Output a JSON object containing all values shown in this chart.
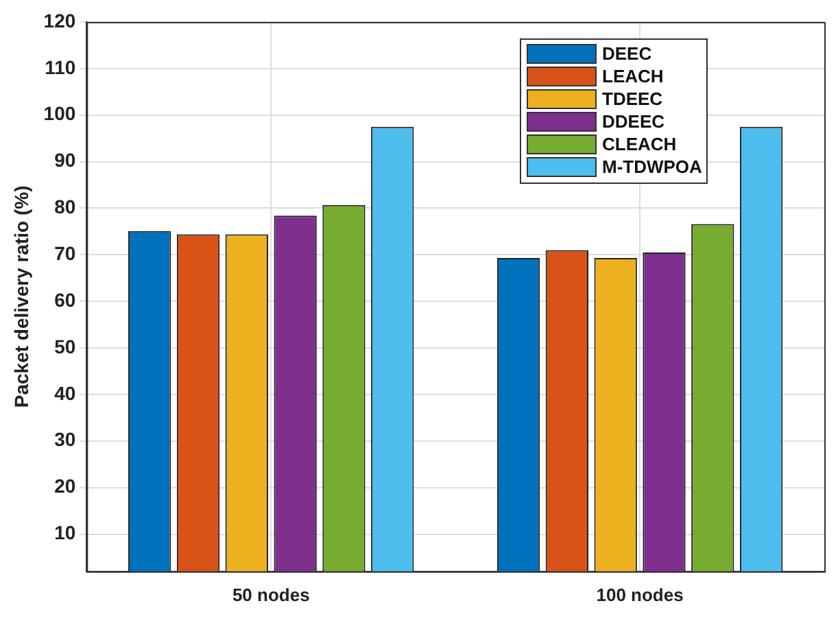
{
  "chart_data": {
    "type": "bar",
    "ylabel": "Packet delivery ratio (%)",
    "categories": [
      "50 nodes",
      "100 nodes"
    ],
    "series": [
      {
        "name": "DEEC",
        "color": "#0072bd",
        "values": [
          75.1,
          69.3
        ]
      },
      {
        "name": "LEACH",
        "color": "#d95319",
        "values": [
          74.4,
          71.0
        ]
      },
      {
        "name": "TDEEC",
        "color": "#edb120",
        "values": [
          74.4,
          69.3
        ]
      },
      {
        "name": "DDEEC",
        "color": "#7e2f8e",
        "values": [
          78.4,
          70.5
        ]
      },
      {
        "name": "CLEACH",
        "color": "#77ac30",
        "values": [
          80.7,
          76.6
        ]
      },
      {
        "name": "M-TDWPOA",
        "color": "#4dbeee",
        "values": [
          97.5,
          97.5
        ]
      }
    ],
    "ylim": [
      2,
      120
    ],
    "yticks": [
      10,
      20,
      30,
      40,
      50,
      60,
      70,
      80,
      90,
      100,
      110,
      120
    ],
    "grid": true,
    "legend": "top right"
  }
}
